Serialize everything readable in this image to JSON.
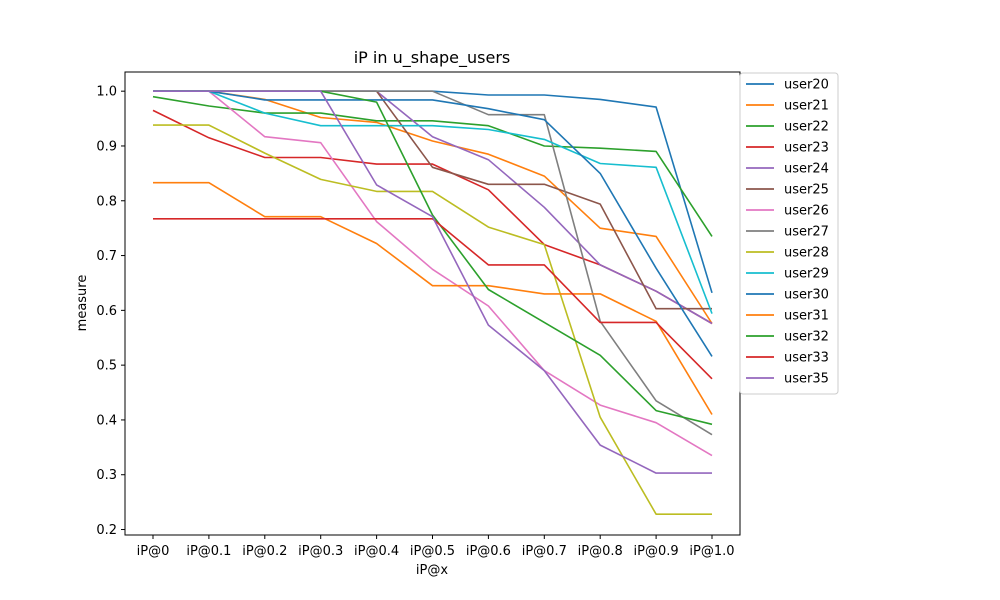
{
  "chart_data": {
    "type": "line",
    "title": "iP in u_shape_users",
    "xlabel": "iP@x",
    "ylabel": "measure",
    "categories": [
      "iP@0",
      "iP@0.1",
      "iP@0.2",
      "iP@0.3",
      "iP@0.4",
      "iP@0.5",
      "iP@0.6",
      "iP@0.7",
      "iP@0.8",
      "iP@0.9",
      "iP@1.0"
    ],
    "ylim": [
      0.19,
      1.035
    ],
    "yticks": [
      0.2,
      0.3,
      0.4,
      0.5,
      0.6,
      0.7,
      0.8,
      0.9,
      1.0
    ],
    "ytick_labels": [
      "0.2",
      "0.3",
      "0.4",
      "0.5",
      "0.6",
      "0.7",
      "0.8",
      "0.9",
      "1.0"
    ],
    "grid": false,
    "legend_position": "outside-right",
    "series": [
      {
        "name": "user20",
        "color": "#1f77b4",
        "values": [
          1.0,
          1.0,
          1.0,
          1.0,
          1.0,
          1.0,
          0.993,
          0.993,
          0.985,
          0.971,
          0.632
        ]
      },
      {
        "name": "user21",
        "color": "#ff7f0e",
        "values": [
          1.0,
          1.0,
          0.985,
          0.952,
          0.943,
          0.909,
          0.885,
          0.845,
          0.75,
          0.735,
          0.576
        ]
      },
      {
        "name": "user22",
        "color": "#2ca02c",
        "values": [
          0.99,
          0.973,
          0.96,
          0.96,
          0.946,
          0.946,
          0.937,
          0.9,
          0.896,
          0.89,
          0.735
        ]
      },
      {
        "name": "user23",
        "color": "#d62728",
        "values": [
          0.965,
          0.915,
          0.879,
          0.879,
          0.867,
          0.867,
          0.82,
          0.72,
          0.683,
          0.635,
          0.576
        ]
      },
      {
        "name": "user24",
        "color": "#9467bd",
        "values": [
          1.0,
          1.0,
          1.0,
          1.0,
          1.0,
          0.917,
          0.875,
          0.788,
          0.683,
          0.635,
          0.576
        ]
      },
      {
        "name": "user25",
        "color": "#8c564b",
        "values": [
          1.0,
          1.0,
          1.0,
          1.0,
          1.0,
          0.861,
          0.83,
          0.83,
          0.794,
          0.603,
          0.603
        ]
      },
      {
        "name": "user26",
        "color": "#e377c2",
        "values": [
          1.0,
          1.0,
          0.917,
          0.906,
          0.762,
          0.675,
          0.608,
          0.49,
          0.427,
          0.395,
          0.335
        ]
      },
      {
        "name": "user27",
        "color": "#7f7f7f",
        "values": [
          1.0,
          1.0,
          1.0,
          1.0,
          1.0,
          1.0,
          0.957,
          0.957,
          0.58,
          0.435,
          0.373
        ]
      },
      {
        "name": "user28",
        "color": "#bcbd22",
        "values": [
          0.938,
          0.938,
          0.887,
          0.839,
          0.817,
          0.817,
          0.752,
          0.72,
          0.405,
          0.228,
          0.228
        ]
      },
      {
        "name": "user29",
        "color": "#17becf",
        "values": [
          1.0,
          1.0,
          0.96,
          0.937,
          0.937,
          0.937,
          0.93,
          0.912,
          0.868,
          0.861,
          0.594
        ]
      },
      {
        "name": "user30",
        "color": "#1f77b4",
        "values": [
          1.0,
          1.0,
          0.984,
          0.984,
          0.984,
          0.984,
          0.968,
          0.948,
          0.85,
          0.677,
          0.516
        ]
      },
      {
        "name": "user31",
        "color": "#ff7f0e",
        "values": [
          0.833,
          0.833,
          0.771,
          0.771,
          0.722,
          0.645,
          0.645,
          0.63,
          0.63,
          0.58,
          0.41
        ]
      },
      {
        "name": "user32",
        "color": "#2ca02c",
        "values": [
          1.0,
          1.0,
          1.0,
          1.0,
          0.98,
          0.774,
          0.638,
          0.578,
          0.518,
          0.417,
          0.392
        ]
      },
      {
        "name": "user33",
        "color": "#d62728",
        "values": [
          0.767,
          0.767,
          0.767,
          0.767,
          0.767,
          0.767,
          0.683,
          0.683,
          0.578,
          0.578,
          0.475
        ]
      },
      {
        "name": "user35",
        "color": "#9467bd",
        "values": [
          1.0,
          1.0,
          1.0,
          1.0,
          0.829,
          0.771,
          0.573,
          0.49,
          0.354,
          0.303,
          0.303
        ]
      }
    ]
  }
}
